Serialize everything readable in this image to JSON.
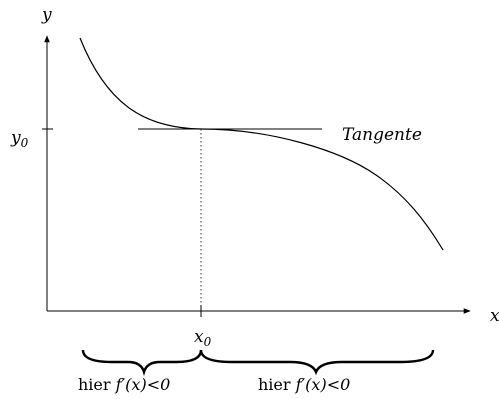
{
  "axes": {
    "x_label": "x",
    "y_label": "y"
  },
  "point": {
    "x_base": "x",
    "x_sub": "0",
    "y_base": "y",
    "y_sub": "0"
  },
  "tangent": {
    "label": "Tangente"
  },
  "intervals": {
    "left": {
      "prefix": "hier ",
      "expr": "f′(x)<0"
    },
    "right": {
      "prefix": "hier ",
      "expr": "f′(x)<0"
    }
  },
  "colors": {
    "ink": "#000000",
    "background": "#ffffff"
  }
}
